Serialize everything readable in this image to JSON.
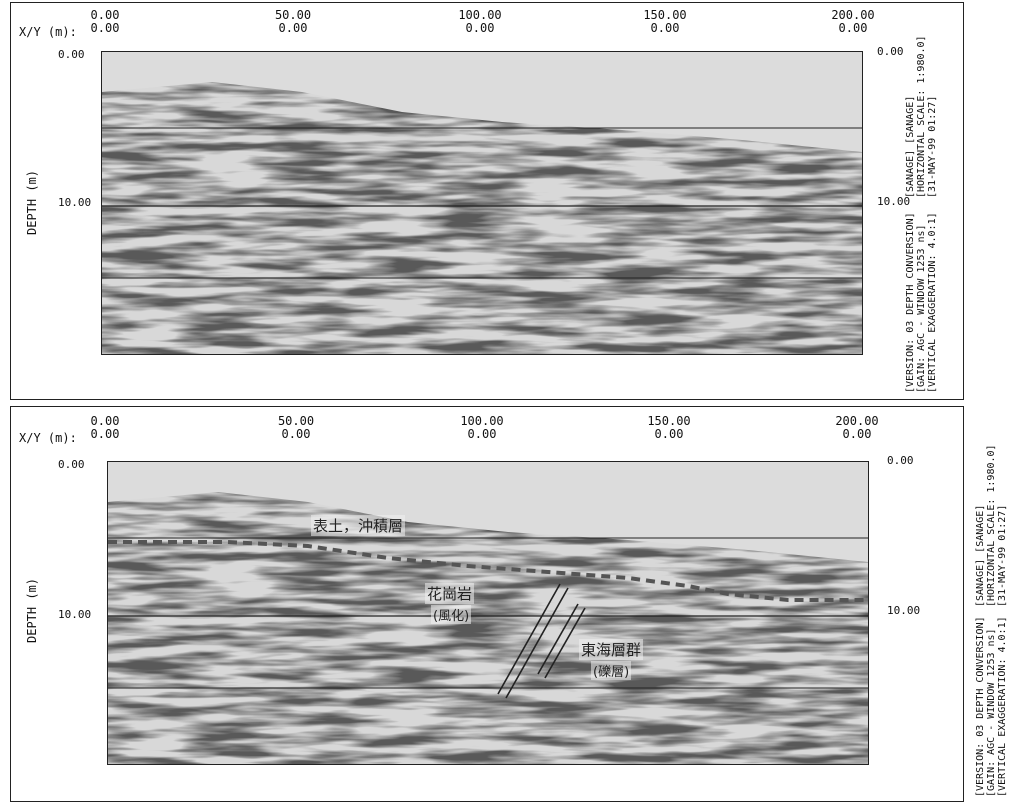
{
  "panels": [
    {
      "xy_label": "X/Y (m):",
      "x_ticks": [
        {
          "top": "0.00",
          "bottom": "0.00"
        },
        {
          "top": "50.00",
          "bottom": "0.00"
        },
        {
          "top": "100.00",
          "bottom": "0.00"
        },
        {
          "top": "150.00",
          "bottom": "0.00"
        },
        {
          "top": "200.00",
          "bottom": "0.00"
        }
      ],
      "depth_label": "DEPTH (m)",
      "left_depth_ticks": [
        "0.00",
        "10.00"
      ],
      "right_depth_ticks": [
        "0.00",
        "10.00"
      ],
      "side_info": [
        "[SANAGE]        [SANAGE]",
        "[HORIZONTAL SCALE: 1:980.0]",
        "[31-MAY-99  01:27]"
      ],
      "side_info2": [
        "[VERSION: 03 DEPTH CONVERSION]",
        "[GAIN: AGC - WINDOW 1253 ns]",
        "[VERTICAL EXAGGERATION: 4.0:1]"
      ]
    },
    {
      "xy_label": "X/Y (m):",
      "x_ticks": [
        {
          "top": "0.00",
          "bottom": "0.00"
        },
        {
          "top": "50.00",
          "bottom": "0.00"
        },
        {
          "top": "100.00",
          "bottom": "0.00"
        },
        {
          "top": "150.00",
          "bottom": "0.00"
        },
        {
          "top": "200.00",
          "bottom": "0.00"
        }
      ],
      "depth_label": "DEPTH (m)",
      "left_depth_ticks": [
        "0.00",
        "10.00"
      ],
      "right_depth_ticks": [
        "0.00",
        "10.00"
      ],
      "side_info": [
        "[SANAGE]        [SANAGE]",
        "[HORIZONTAL SCALE: 1:980.0]",
        "[31-MAY-99  01:27]"
      ],
      "side_info2": [
        "[VERSION: 03 DEPTH CONVERSION]",
        "[GAIN: AGC - WINDOW 1253 ns]",
        "[VERTICAL EXAGGERATION: 4.0:1]"
      ],
      "annotations": {
        "surface_layer": "表土，沖積層",
        "granite": "花崗岩",
        "granite_sub": "(風化)",
        "tokai_group": "東海層群",
        "tokai_sub": "(礫層)"
      }
    }
  ]
}
